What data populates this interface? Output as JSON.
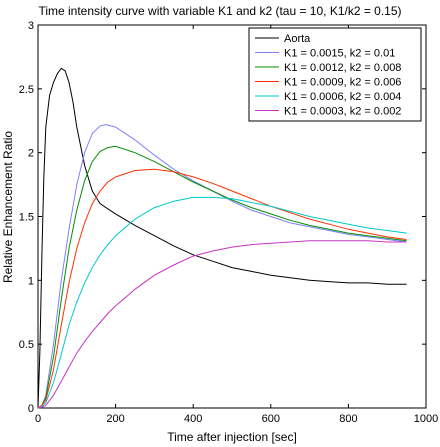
{
  "chart_data": {
    "type": "line",
    "title": "Time intensity curve with variable K1 and k2 (tau = 10, K1/k2 = 0.15)",
    "xlabel": "Time after injection [sec]",
    "ylabel": "Relative Enhancement Ratio",
    "xlim": [
      0,
      1000
    ],
    "ylim": [
      0,
      3
    ],
    "xticks": [
      0,
      200,
      400,
      600,
      800,
      1000
    ],
    "yticks": [
      0,
      0.5,
      1,
      1.5,
      2,
      2.5,
      3
    ],
    "xtick_labels": [
      "0",
      "200",
      "400",
      "600",
      "800",
      "1000"
    ],
    "ytick_labels": [
      "0",
      "0.5",
      "1",
      "1.5",
      "2",
      "2.5",
      "3"
    ],
    "grid": false,
    "legend_position": "top-right",
    "series": [
      {
        "name": "Aorta",
        "color": "#000000",
        "x": [
          0,
          5,
          10,
          15,
          20,
          30,
          40,
          50,
          60,
          70,
          80,
          90,
          100,
          120,
          140,
          160,
          180,
          200,
          250,
          300,
          350,
          400,
          450,
          500,
          550,
          600,
          650,
          700,
          750,
          800,
          850,
          900,
          950
        ],
        "y": [
          0,
          0.45,
          1.2,
          1.8,
          2.2,
          2.45,
          2.55,
          2.62,
          2.66,
          2.64,
          2.55,
          2.4,
          2.2,
          1.9,
          1.7,
          1.6,
          1.56,
          1.52,
          1.43,
          1.35,
          1.27,
          1.2,
          1.15,
          1.1,
          1.07,
          1.04,
          1.02,
          1.0,
          0.99,
          0.98,
          0.98,
          0.97,
          0.97
        ]
      },
      {
        "name": "K1 = 0.0015, k2 = 0.01",
        "color": "#7f7fff",
        "x": [
          0,
          10,
          20,
          40,
          60,
          80,
          100,
          120,
          140,
          160,
          175,
          200,
          250,
          300,
          350,
          400,
          450,
          500,
          550,
          600,
          650,
          700,
          750,
          800,
          850,
          900,
          950
        ],
        "y": [
          0,
          0.02,
          0.1,
          0.5,
          1.0,
          1.4,
          1.75,
          2.0,
          2.15,
          2.21,
          2.22,
          2.2,
          2.1,
          1.98,
          1.87,
          1.78,
          1.7,
          1.62,
          1.55,
          1.5,
          1.45,
          1.42,
          1.39,
          1.36,
          1.34,
          1.32,
          1.3
        ]
      },
      {
        "name": "K1 = 0.0012, k2 = 0.008",
        "color": "#009000",
        "x": [
          0,
          10,
          20,
          40,
          60,
          80,
          100,
          120,
          140,
          160,
          180,
          200,
          250,
          300,
          350,
          400,
          450,
          500,
          550,
          600,
          650,
          700,
          750,
          800,
          850,
          900,
          950
        ],
        "y": [
          0,
          0.02,
          0.08,
          0.4,
          0.85,
          1.25,
          1.55,
          1.78,
          1.93,
          2.01,
          2.04,
          2.05,
          2.0,
          1.93,
          1.85,
          1.77,
          1.7,
          1.63,
          1.57,
          1.52,
          1.47,
          1.43,
          1.4,
          1.37,
          1.35,
          1.33,
          1.31
        ]
      },
      {
        "name": "K1 = 0.0009, k2 = 0.006",
        "color": "#ff3000",
        "x": [
          0,
          10,
          20,
          40,
          60,
          80,
          100,
          120,
          140,
          160,
          180,
          200,
          250,
          300,
          350,
          400,
          450,
          500,
          550,
          600,
          650,
          700,
          750,
          800,
          850,
          900,
          950
        ],
        "y": [
          0,
          0.02,
          0.06,
          0.3,
          0.65,
          0.98,
          1.25,
          1.45,
          1.6,
          1.7,
          1.77,
          1.81,
          1.86,
          1.87,
          1.85,
          1.81,
          1.76,
          1.7,
          1.64,
          1.58,
          1.53,
          1.48,
          1.44,
          1.4,
          1.37,
          1.34,
          1.32
        ]
      },
      {
        "name": "K1 = 0.0006, k2 = 0.004",
        "color": "#00c8c8",
        "x": [
          0,
          10,
          20,
          40,
          60,
          80,
          100,
          120,
          140,
          160,
          180,
          200,
          250,
          300,
          350,
          400,
          450,
          500,
          550,
          600,
          650,
          700,
          750,
          800,
          850,
          900,
          950
        ],
        "y": [
          0,
          0.01,
          0.04,
          0.2,
          0.42,
          0.65,
          0.83,
          0.98,
          1.1,
          1.2,
          1.28,
          1.35,
          1.48,
          1.57,
          1.62,
          1.65,
          1.65,
          1.64,
          1.61,
          1.58,
          1.54,
          1.5,
          1.47,
          1.44,
          1.41,
          1.39,
          1.37
        ]
      },
      {
        "name": "K1 = 0.0003, k2 = 0.002",
        "color": "#c832c8",
        "x": [
          0,
          10,
          20,
          40,
          60,
          80,
          100,
          120,
          140,
          160,
          180,
          200,
          250,
          300,
          350,
          400,
          450,
          500,
          550,
          600,
          650,
          700,
          750,
          800,
          850,
          900,
          950
        ],
        "y": [
          0,
          0.005,
          0.02,
          0.1,
          0.21,
          0.32,
          0.43,
          0.52,
          0.6,
          0.67,
          0.74,
          0.8,
          0.93,
          1.04,
          1.12,
          1.19,
          1.23,
          1.26,
          1.28,
          1.29,
          1.3,
          1.31,
          1.31,
          1.31,
          1.31,
          1.3,
          1.3
        ]
      }
    ]
  }
}
